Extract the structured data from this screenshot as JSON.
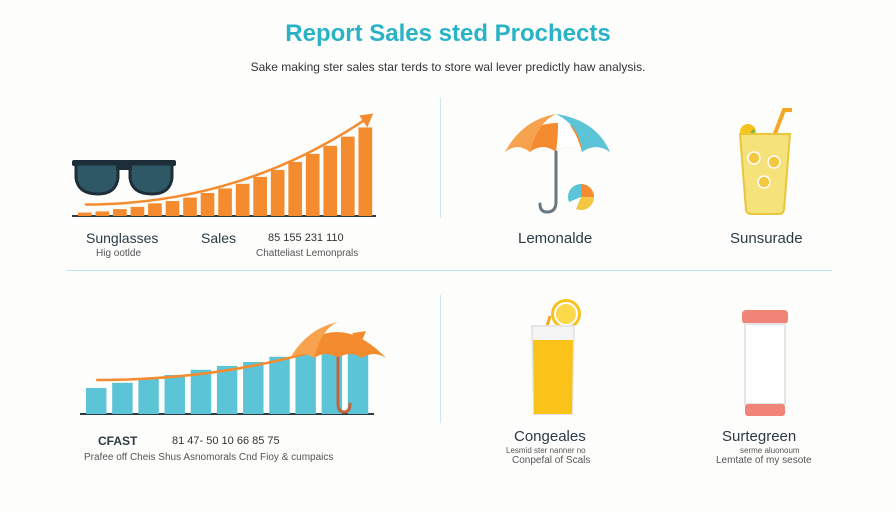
{
  "title": "Report Sales sted Prochects",
  "subtitle": "Sake making ster sales star terds to store wal lever predictly haw analysis.",
  "colors": {
    "title": "#2ab3c6",
    "orange": "#f58b2f",
    "teal": "#5bc4d6"
  },
  "panels": {
    "top_left": {
      "label_a": "Sunglasses",
      "label_a_sub": "Hig ootlde",
      "label_b": "Sales",
      "numbers": "85   155   231   110",
      "numbers_sub": "Chatteliast Lemonprals"
    },
    "top_mid": {
      "label": "Lemonalde"
    },
    "top_right": {
      "label": "Sunsurade"
    },
    "bottom_left": {
      "label_a": "CFAST",
      "numbers": "81    47-    50    10    66    85    75",
      "sub": "Prafee off Cheis   Shus   Asnomorals     Cnd Fioy & cumpaics"
    },
    "bottom_mid": {
      "label": "Congeales",
      "sub1": "Lesmid ster nanner no",
      "sub2": "Conpefal of Scals"
    },
    "bottom_right": {
      "label": "Surtegreen",
      "sub1": "serme aluonoum",
      "sub2": "Lemtate of my sesote"
    }
  },
  "icons": {
    "top_left": "sunglasses-icon",
    "top_mid": "umbrella-icon",
    "top_mid_small": "pie-icon",
    "top_right": "lemonade-glass-icon",
    "bottom_left": "umbrella-icon",
    "bottom_mid": "lemonade-glass-icon",
    "bottom_right": "sunscreen-tube-icon"
  },
  "chart_data": [
    {
      "type": "bar",
      "series": [
        {
          "values": [
            3,
            4,
            6,
            8,
            11,
            13,
            16,
            20,
            24,
            28,
            34,
            40,
            47,
            54,
            61,
            69,
            77
          ]
        }
      ],
      "ylim": [
        0,
        80
      ],
      "color": "#f58b2f",
      "trend_arrow": true
    },
    {
      "type": "bar",
      "series": [
        {
          "values": [
            20,
            24,
            27,
            30,
            34,
            37,
            40,
            44,
            47,
            50,
            53
          ]
        }
      ],
      "ylim": [
        0,
        80
      ],
      "color": "#5bc4d6",
      "trend_arrow": true
    }
  ]
}
